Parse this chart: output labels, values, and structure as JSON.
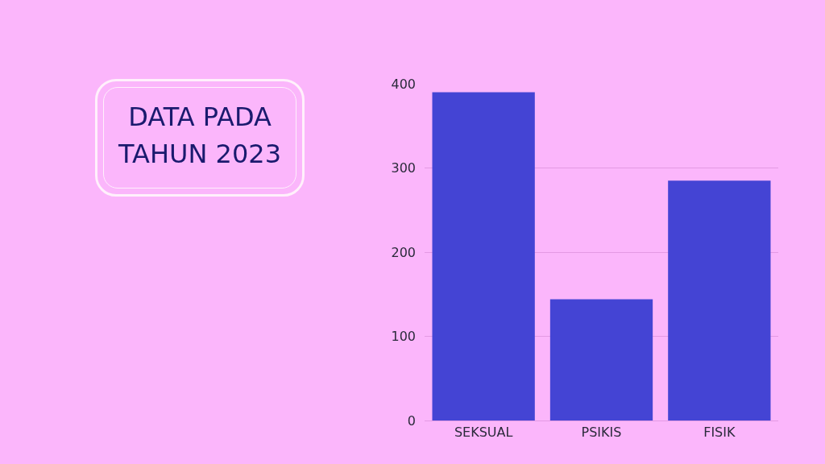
{
  "chart_data": {
    "type": "bar",
    "title": "DATA PADA TAHUN 2023",
    "categories": [
      "SEKSUAL",
      "PSIKIS",
      "FISIK"
    ],
    "values": [
      390,
      144,
      285
    ],
    "color": "#4444d4",
    "ylim": [
      0,
      400
    ],
    "yticks": [
      0,
      100,
      200,
      300,
      400
    ],
    "grid": "y"
  }
}
